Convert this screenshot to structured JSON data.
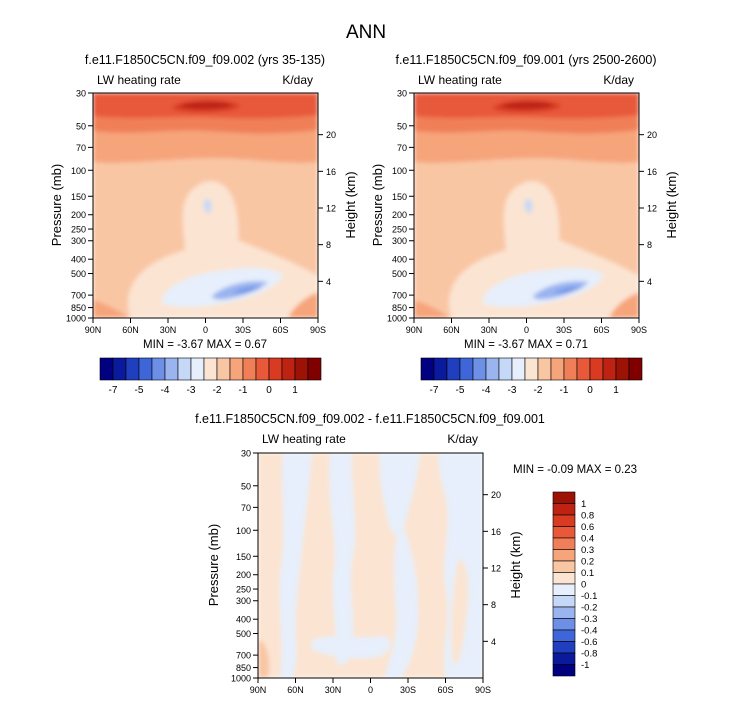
{
  "figure_title": "ANN",
  "colors": {
    "scale_main": [
      "#000080",
      "#0a1a9c",
      "#1f3fbf",
      "#3f66d9",
      "#6d90e6",
      "#9ab4f0",
      "#c6d8f7",
      "#e6effb",
      "#fbe4d2",
      "#f9c6a4",
      "#f6a47a",
      "#f07f58",
      "#e8593a",
      "#d83a22",
      "#bd2212",
      "#9c1306",
      "#800000"
    ],
    "scale_diff": [
      "#000080",
      "#0a1a9c",
      "#1f3fbf",
      "#3f66d9",
      "#6d90e6",
      "#9ab4f0",
      "#c6d8f7",
      "#e6effb",
      "#fbe4d2",
      "#f9c6a4",
      "#f6a47a",
      "#f07f58",
      "#e8593a",
      "#d83a22",
      "#bd2212",
      "#9c1306"
    ]
  },
  "chart_data": [
    {
      "type": "contour",
      "title": "f.e11.F1850C5CN.f09_f09.002 (yrs 35-135)",
      "variable_label": "LW heating rate",
      "units_label": "K/day",
      "xlabel": "",
      "ylabel": "Pressure (mb)",
      "y2label": "Height (km)",
      "x_ticks": [
        "90N",
        "60N",
        "30N",
        "0",
        "30S",
        "60S",
        "90S"
      ],
      "x_values": [
        90,
        60,
        30,
        0,
        -30,
        -60,
        -90
      ],
      "y_ticks": [
        "30",
        "50",
        "70",
        "100",
        "150",
        "200",
        "250",
        "300",
        "400",
        "500",
        "700",
        "850",
        "1000"
      ],
      "y_values": [
        30,
        50,
        70,
        100,
        150,
        200,
        250,
        300,
        400,
        500,
        700,
        850,
        1000
      ],
      "y2_ticks": [
        "20",
        "16",
        "12",
        "8",
        "4"
      ],
      "y2_values": [
        20,
        16,
        12,
        8,
        4
      ],
      "ylim": [
        30,
        1000
      ],
      "stats_text": "MIN =  -3.67   MAX =   0.67",
      "min": -3.67,
      "max": 0.67
    },
    {
      "type": "contour",
      "title": "f.e11.F1850C5CN.f09_f09.001 (yrs 2500-2600)",
      "variable_label": "LW heating rate",
      "units_label": "K/day",
      "xlabel": "",
      "ylabel": "Pressure (mb)",
      "y2label": "Height (km)",
      "x_ticks": [
        "90N",
        "60N",
        "30N",
        "0",
        "30S",
        "60S",
        "90S"
      ],
      "x_values": [
        90,
        60,
        30,
        0,
        -30,
        -60,
        -90
      ],
      "y_ticks": [
        "30",
        "50",
        "70",
        "100",
        "150",
        "200",
        "250",
        "300",
        "400",
        "500",
        "700",
        "850",
        "1000"
      ],
      "y_values": [
        30,
        50,
        70,
        100,
        150,
        200,
        250,
        300,
        400,
        500,
        700,
        850,
        1000
      ],
      "y2_ticks": [
        "20",
        "16",
        "12",
        "8",
        "4"
      ],
      "y2_values": [
        20,
        16,
        12,
        8,
        4
      ],
      "ylim": [
        30,
        1000
      ],
      "stats_text": "MIN =  -3.67   MAX =   0.71",
      "min": -3.67,
      "max": 0.71
    },
    {
      "type": "contour",
      "title": "f.e11.F1850C5CN.f09_f09.002 - f.e11.F1850C5CN.f09_f09.001",
      "variable_label": "LW heating rate",
      "units_label": "K/day",
      "xlabel": "",
      "ylabel": "Pressure (mb)",
      "y2label": "Height (km)",
      "x_ticks": [
        "90N",
        "60N",
        "30N",
        "0",
        "30S",
        "60S",
        "90S"
      ],
      "x_values": [
        90,
        60,
        30,
        0,
        -30,
        -60,
        -90
      ],
      "y_ticks": [
        "30",
        "50",
        "70",
        "100",
        "150",
        "200",
        "250",
        "300",
        "400",
        "500",
        "700",
        "850",
        "1000"
      ],
      "y_values": [
        30,
        50,
        70,
        100,
        150,
        200,
        250,
        300,
        400,
        500,
        700,
        850,
        1000
      ],
      "y2_ticks": [
        "20",
        "16",
        "12",
        "8",
        "4"
      ],
      "y2_values": [
        20,
        16,
        12,
        8,
        4
      ],
      "ylim": [
        30,
        1000
      ],
      "stats_text": "MIN =  -0.09   MAX =    0.23",
      "min": -0.09,
      "max": 0.23
    }
  ],
  "colorbars": [
    {
      "orientation": "horizontal",
      "labels": [
        "-7",
        "-5",
        "-4",
        "-3",
        "-2",
        "-1",
        "0",
        "1"
      ],
      "label_positions": [
        1,
        3,
        5,
        7,
        9,
        11,
        13,
        15
      ]
    },
    {
      "orientation": "horizontal",
      "labels": [
        "-7",
        "-5",
        "-4",
        "-3",
        "-2",
        "-1",
        "0",
        "1"
      ],
      "label_positions": [
        1,
        3,
        5,
        7,
        9,
        11,
        13,
        15
      ]
    },
    {
      "orientation": "vertical",
      "labels": [
        "1",
        "0.8",
        "0.6",
        "0.4",
        "0.3",
        "0.2",
        "0.1",
        "0",
        "-0.1",
        "-0.2",
        "-0.3",
        "-0.4",
        "-0.6",
        "-0.8",
        "-1"
      ]
    }
  ]
}
